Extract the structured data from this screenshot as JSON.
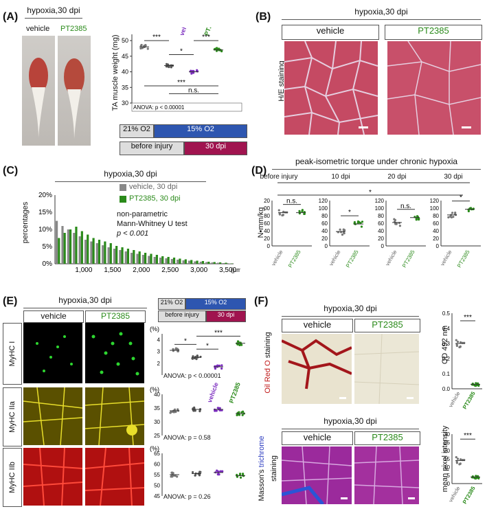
{
  "panels": {
    "A": "(A)",
    "B": "(B)",
    "C": "(C)",
    "D": "(D)",
    "E": "(E)",
    "F": "(F)"
  },
  "common": {
    "hypoxia": "hypoxia,30 dpi",
    "vehicle": "vehicle",
    "pt": "PT2385"
  },
  "a": {
    "ylabel": "TA muscle weight (mg)",
    "yticks": [
      "30",
      "35",
      "40",
      "45",
      "50"
    ],
    "anova": "ANOVA: p < 0.00001",
    "sig": [
      "***",
      "*",
      "***",
      "n.s.",
      "***"
    ],
    "o21": "21% O2",
    "o15": "15% O2",
    "before": "before injury",
    "dpi30": "30 dpi"
  },
  "b": {
    "side": "H/E staining"
  },
  "c": {
    "legend1": "vehicle, 30 dpi",
    "legend2": "PT2385, 30 dpi",
    "test1": "non-parametric",
    "test2": "Mann-Whitney U test",
    "test3": "p < 0.001",
    "ylabel": "percentages",
    "yticks": [
      "0%",
      "5%",
      "10%",
      "15%",
      "20%"
    ],
    "xticks": [
      "1,000",
      "1,500",
      "2,000",
      "2,500",
      "3,000",
      "3,500"
    ],
    "xunit": "(μm²)"
  },
  "d": {
    "title": "peak-isometric torque under chronic hypoxia",
    "groups": [
      "before injury",
      "10 dpi",
      "20 dpi",
      "30 dpi"
    ],
    "sig": [
      "n.s.",
      "*",
      "n.s.",
      "*",
      "*"
    ],
    "ylabel": "N•mm/kg",
    "yticks": [
      "0",
      "20",
      "40",
      "60",
      "80",
      "100",
      "120"
    ]
  },
  "e": {
    "o21": "21% O2",
    "o15": "15% O2",
    "before": "before injury",
    "dpi30": "30 dpi",
    "rows": [
      {
        "name": "MyHC I",
        "pct": "(%)",
        "yticks": [
          "2",
          "3",
          "4"
        ],
        "anova": "ANOVA: p < 0.00001"
      },
      {
        "name": "MyHC IIa",
        "pct": "(%)",
        "yticks": [
          "25",
          "30",
          "35",
          "40"
        ],
        "anova": "ANOVA: p = 0.58"
      },
      {
        "name": "MyHC IIb",
        "pct": "(%)",
        "yticks": [
          "45",
          "50",
          "55",
          "60",
          "65"
        ],
        "anova": "ANOVA: p = 0.26"
      }
    ],
    "sig": [
      "*",
      "*",
      "***"
    ]
  },
  "f": {
    "oil_red": "Oil Red O",
    "oil_staining": "staining",
    "masson": "Masson's",
    "trichrome": "trichrome",
    "staining2": "staining",
    "od_label": "OD 492 nm",
    "od_ticks": [
      "0.0",
      "0.1",
      "0.2",
      "0.3",
      "0.4",
      "0.5"
    ],
    "mpi_label": "mean pixel intensity",
    "mpi_ticks": [
      "0",
      "5",
      "10",
      "15",
      "20",
      "25",
      "30"
    ],
    "sig": "***"
  },
  "chart_data": [
    {
      "type": "scatter",
      "title": "",
      "ylabel": "TA muscle weight (mg)",
      "ylim": [
        30,
        52
      ],
      "categories": [
        "21% O2 before",
        "30 dpi 21%",
        "vehicle",
        "PT2385"
      ],
      "values": [
        48,
        42,
        40,
        47
      ]
    },
    {
      "type": "bar",
      "ylabel": "percentages",
      "ylim": [
        0,
        20
      ],
      "x": [
        500,
        600,
        700,
        800,
        900,
        1000,
        1100,
        1200,
        1300,
        1400,
        1500,
        1600,
        1700,
        1800,
        1900,
        2000,
        2100,
        2200,
        2300,
        2400,
        2500,
        2600,
        2700,
        2800,
        2900,
        3000,
        3100,
        3200,
        3300,
        3400,
        3500
      ],
      "series": [
        {
          "name": "vehicle, 30 dpi",
          "values": [
            12.5,
            11,
            10,
            9,
            8,
            7,
            6.5,
            6,
            5.4,
            4.8,
            4.4,
            4,
            3.6,
            3.2,
            2.9,
            2.6,
            2.3,
            2,
            1.8,
            1.6,
            1.4,
            1.2,
            1,
            0.9,
            0.7,
            0.6,
            0.5,
            0.4,
            0.3,
            0.2,
            0.1
          ]
        },
        {
          "name": "PT2385, 30 dpi",
          "values": [
            7.5,
            9,
            10,
            10.8,
            9.5,
            8.5,
            7.5,
            7,
            6.5,
            6,
            5.2,
            4.8,
            4.4,
            4,
            3.6,
            3.2,
            2.9,
            2.6,
            2.2,
            2,
            1.8,
            1.5,
            1.3,
            1.1,
            0.9,
            0.8,
            0.6,
            0.5,
            0.4,
            0.3,
            0.1
          ]
        }
      ]
    },
    {
      "type": "scatter",
      "ylabel": "N•mm/kg",
      "ylim": [
        0,
        120
      ],
      "categories": [
        "before injury",
        "10 dpi",
        "20 dpi",
        "30 dpi"
      ],
      "series": [
        {
          "name": "vehicle",
          "values": [
            88,
            38,
            62,
            82
          ]
        },
        {
          "name": "PT2385",
          "values": [
            88,
            58,
            75,
            97
          ]
        }
      ]
    },
    {
      "type": "scatter",
      "title": "MyHC I",
      "ylim": [
        1,
        4.5
      ],
      "categories": [
        "21% before",
        "30 dpi",
        "vehicle",
        "PT2385"
      ],
      "values": [
        3.1,
        2.5,
        1.7,
        3.7
      ]
    },
    {
      "type": "scatter",
      "title": "MyHC IIa",
      "ylim": [
        25,
        40
      ],
      "categories": [
        "21% before",
        "30 dpi",
        "vehicle",
        "PT2385"
      ],
      "values": [
        34,
        34.5,
        34.5,
        33
      ]
    },
    {
      "type": "scatter",
      "title": "MyHC IIb",
      "ylim": [
        45,
        65
      ],
      "categories": [
        "21% before",
        "30 dpi",
        "vehicle",
        "PT2385"
      ],
      "values": [
        55,
        55.5,
        56,
        54.5
      ]
    },
    {
      "type": "scatter",
      "ylabel": "OD 492 nm",
      "ylim": [
        0,
        0.5
      ],
      "categories": [
        "vehicle",
        "PT2385"
      ],
      "values": [
        0.3,
        0.03
      ]
    },
    {
      "type": "scatter",
      "ylabel": "mean pixel intensity",
      "ylim": [
        0,
        30
      ],
      "categories": [
        "vehicle",
        "PT2385"
      ],
      "values": [
        14,
        4
      ]
    }
  ]
}
